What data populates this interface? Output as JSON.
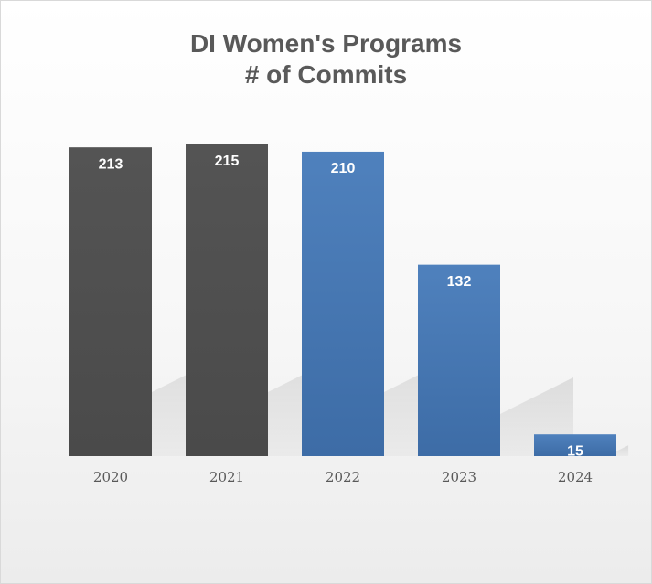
{
  "chart_data": {
    "type": "bar",
    "title": [
      "DI Women's Programs",
      "# of Commits"
    ],
    "categories": [
      "2020",
      "2021",
      "2022",
      "2023",
      "2024"
    ],
    "values": [
      213,
      215,
      210,
      132,
      15
    ],
    "bar_colors": [
      "#545454",
      "#545454",
      "#4f81bd",
      "#4f81bd",
      "#4f81bd"
    ],
    "bar_colors_dark": [
      "#4a4a4a",
      "#4a4a4a",
      "#3d6ca6",
      "#3d6ca6",
      "#3d6ca6"
    ],
    "data_labels": true,
    "grid": false,
    "legend": "none",
    "ylim": [
      0,
      215
    ]
  }
}
